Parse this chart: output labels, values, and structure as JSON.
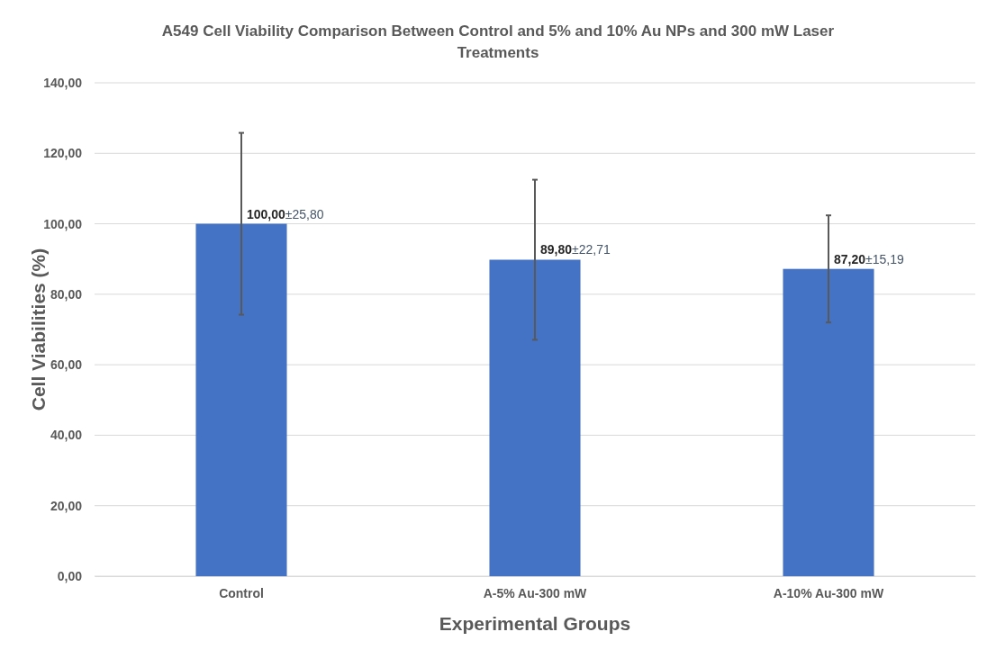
{
  "chart_data": {
    "type": "bar",
    "title": "A549 Cell Viability Comparison Between Control and 5% and 10% Au NPs and 300 mW Laser Treatments",
    "xlabel": "Experimental Groups",
    "ylabel": "Cell Viabilities (%)",
    "categories": [
      "Control",
      "A-5% Au-300 mW",
      "A-10% Au-300 mW"
    ],
    "values": [
      100.0,
      89.8,
      87.2
    ],
    "errors": [
      25.8,
      22.71,
      15.19
    ],
    "value_labels": [
      "100,00±25,80",
      "89,80±22,71",
      "87,20±15,19"
    ],
    "color": "#4472c4",
    "ylim": [
      0,
      140
    ],
    "yticks": [
      {
        "value": 0,
        "label": "0,00"
      },
      {
        "value": 20,
        "label": "20,00"
      },
      {
        "value": 40,
        "label": "40,00"
      },
      {
        "value": 60,
        "label": "60,00"
      },
      {
        "value": 80,
        "label": "80,00"
      },
      {
        "value": 100,
        "label": "100,00"
      },
      {
        "value": 120,
        "label": "120,00"
      },
      {
        "value": 140,
        "label": "140,00"
      }
    ],
    "grid": "y"
  }
}
